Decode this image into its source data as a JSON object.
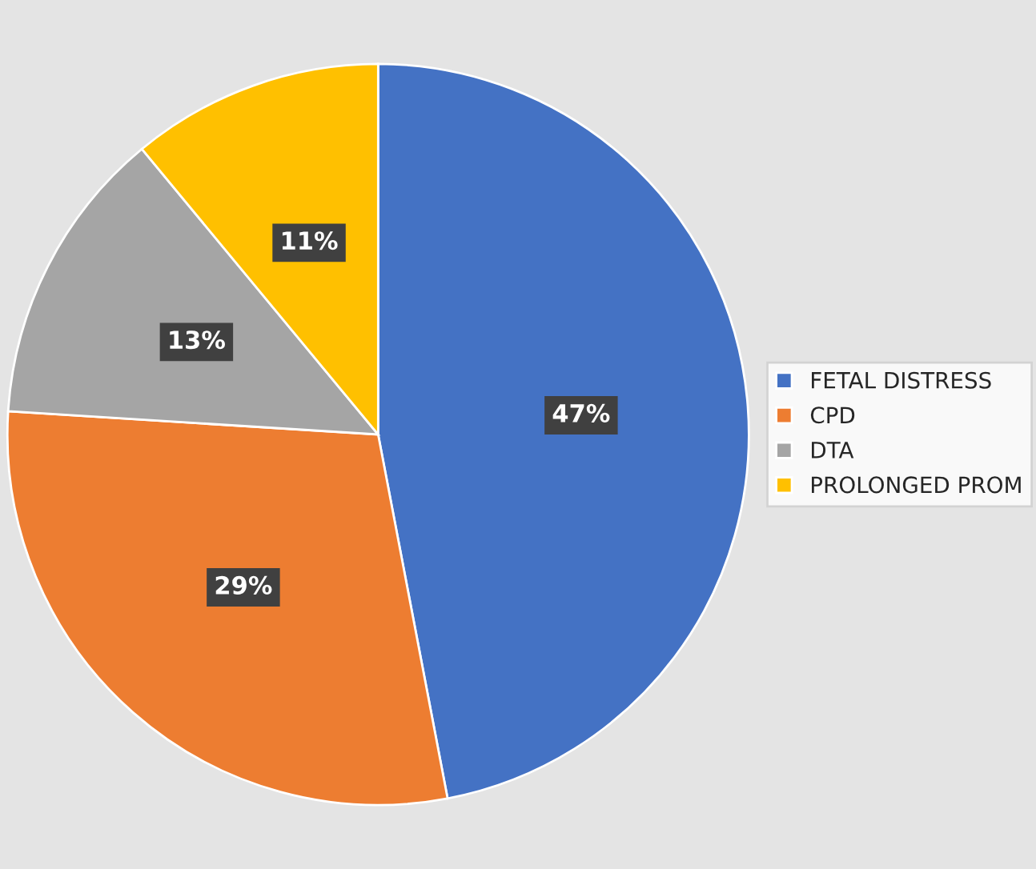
{
  "chart_data": {
    "type": "pie",
    "categories": [
      "FETAL DISTRESS",
      "CPD",
      "DTA",
      "PROLONGED PROM"
    ],
    "values": [
      47,
      29,
      13,
      11
    ],
    "colors": [
      "#4472c4",
      "#ed7d31",
      "#a5a5a5",
      "#ffc000"
    ],
    "value_labels": [
      "47%",
      "29%",
      "13%",
      "11%"
    ],
    "legend": "right"
  }
}
